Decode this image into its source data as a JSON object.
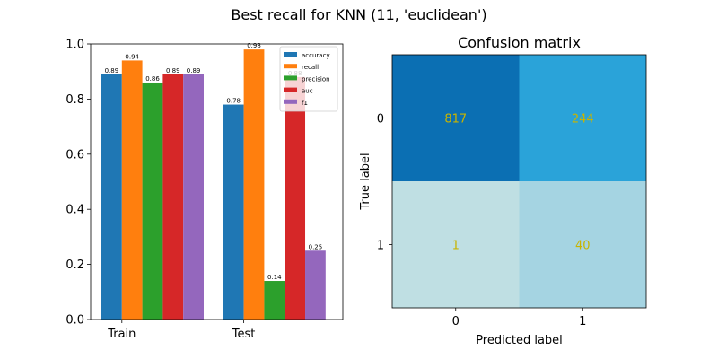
{
  "figure": {
    "suptitle": "Best recall for KNN (11, 'euclidean')"
  },
  "chart_data": [
    {
      "type": "bar",
      "title": "",
      "xlabel": "",
      "ylabel": "",
      "ylim": [
        0,
        1.0
      ],
      "yticks": [
        "0.0",
        "0.2",
        "0.4",
        "0.6",
        "0.8",
        "1.0"
      ],
      "categories": [
        "Train",
        "Test"
      ],
      "legend_position": "top-right",
      "series": [
        {
          "name": "accuracy",
          "color": "#1f77b4",
          "values": [
            0.89,
            0.78
          ],
          "labels": [
            "0.89",
            "0.78"
          ]
        },
        {
          "name": "recall",
          "color": "#ff7f0e",
          "values": [
            0.94,
            0.98
          ],
          "labels": [
            "0.94",
            "0.98"
          ]
        },
        {
          "name": "precision",
          "color": "#2ca02c",
          "values": [
            0.86,
            0.14
          ],
          "labels": [
            "0.86",
            "0.14"
          ]
        },
        {
          "name": "auc",
          "color": "#d62728",
          "values": [
            0.89,
            0.88
          ],
          "labels": [
            "0.89",
            "0.88"
          ]
        },
        {
          "name": "f1",
          "color": "#9467bd",
          "values": [
            0.89,
            0.25
          ],
          "labels": [
            "0.89",
            "0.25"
          ]
        }
      ]
    },
    {
      "type": "heatmap",
      "title": "Confusion matrix",
      "xlabel": "Predicted label",
      "ylabel": "True label",
      "x_ticks": [
        "0",
        "1"
      ],
      "y_ticks": [
        "0",
        "1"
      ],
      "values": [
        [
          817,
          244
        ],
        [
          1,
          40
        ]
      ],
      "cell_colors": [
        [
          "#0b6fb3",
          "#2aa3d9"
        ],
        [
          "#bfdfe3",
          "#a5d4e2"
        ]
      ],
      "text_color": "#c8b400"
    }
  ]
}
